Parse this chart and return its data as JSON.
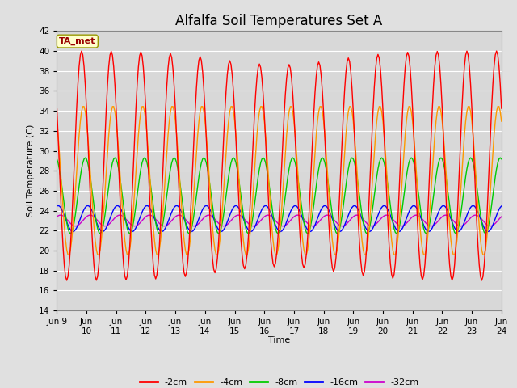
{
  "title": "Alfalfa Soil Temperatures Set A",
  "xlabel": "Time",
  "ylabel": "Soil Temperature (C)",
  "ylim": [
    14,
    42
  ],
  "yticks": [
    14,
    16,
    18,
    20,
    22,
    24,
    26,
    28,
    30,
    32,
    34,
    36,
    38,
    40,
    42
  ],
  "xtick_labels": [
    "Jun 9",
    "Jun\n10",
    "Jun\n11",
    "Jun\n12",
    "Jun\n13",
    "Jun\n14",
    "Jun\n15",
    "Jun\n16",
    "Jun\n17",
    "Jun\n18",
    "Jun\n19",
    "Jun\n20",
    "Jun\n21",
    "Jun\n22",
    "Jun\n23",
    "Jun\n24"
  ],
  "legend_labels": [
    "-2cm",
    "-4cm",
    "-8cm",
    "-16cm",
    "-32cm"
  ],
  "legend_colors": [
    "#ff0000",
    "#ff9900",
    "#00cc00",
    "#0000ff",
    "#cc00cc"
  ],
  "background_color": "#e0e0e0",
  "plot_bg_color": "#d8d8d8",
  "ta_met_label": "TA_met",
  "ta_met_bg": "#ffffcc",
  "ta_met_border": "#999900",
  "ta_met_text_color": "#990000",
  "grid_color": "#ffffff",
  "title_fontsize": 12,
  "series": {
    "d2cm": {
      "mean": 28.5,
      "amp": 11.5,
      "phase": 14.0,
      "lag": 0.0
    },
    "d4cm": {
      "mean": 27.0,
      "amp": 7.5,
      "phase": 14.0,
      "lag": 1.5
    },
    "d8cm": {
      "mean": 25.5,
      "amp": 3.8,
      "phase": 14.0,
      "lag": 3.0
    },
    "d16cm": {
      "mean": 23.2,
      "amp": 1.3,
      "phase": 14.0,
      "lag": 5.0
    },
    "d32cm": {
      "mean": 23.0,
      "amp": 0.55,
      "phase": 14.0,
      "lag": 7.0
    }
  }
}
